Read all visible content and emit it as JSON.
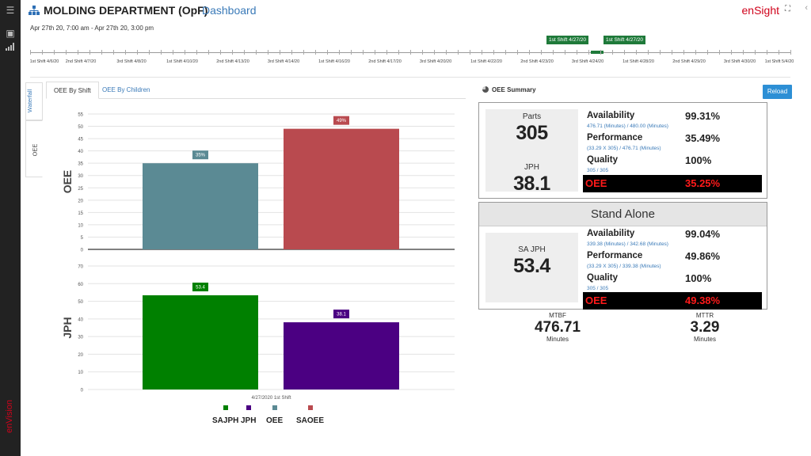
{
  "leftbar": {
    "brand": "enVision"
  },
  "header": {
    "title": "MOLDING DEPARTMENT (OpF)",
    "subtitle": "Dashboard",
    "app_name": "enSight",
    "accent": "#d0021b"
  },
  "date_range": "Apr 27th 20, 7:00 am - Apr 27th 20, 3:00 pm",
  "timeline": {
    "labels": [
      "1st Shift 4/6/20",
      "2nd Shift 4/7/20",
      "3rd Shift 4/8/20",
      "1st Shift 4/10/20",
      "2nd Shift 4/13/20",
      "3rd Shift 4/14/20",
      "1st Shift 4/16/20",
      "2nd Shift 4/17/20",
      "3rd Shift 4/20/20",
      "1st Shift 4/22/20",
      "2nd Shift 4/23/20",
      "3rd Shift 4/24/20",
      "1st Shift 4/28/20",
      "2nd Shift 4/29/20",
      "3rd Shift 4/30/20",
      "1st Shift 5/4/20"
    ],
    "flag_start": "1st Shift 4/27/20",
    "flag_end": "1st Shift 4/27/20",
    "selection_color": "#1f7a3a"
  },
  "vtabs": {
    "waterfall": "Waterfall",
    "oee": "OEE"
  },
  "tabs": {
    "by_shift": "OEE By Shift",
    "by_children": "OEE By Children"
  },
  "chart_data": [
    {
      "type": "bar",
      "ylabel": "OEE",
      "ylim": [
        0,
        55
      ],
      "yticks": [
        0,
        5,
        10,
        15,
        20,
        25,
        30,
        35,
        40,
        45,
        50,
        55
      ],
      "series": [
        {
          "name": "OEE",
          "values": [
            35
          ],
          "label": "35%",
          "color": "#5b8a94"
        },
        {
          "name": "SAOEE",
          "values": [
            49
          ],
          "label": "49%",
          "color": "#b94a4f"
        }
      ]
    },
    {
      "type": "bar",
      "ylabel": "JPH",
      "xlabel": "4/27/2020 1st Shift",
      "ylim": [
        0,
        70
      ],
      "yticks": [
        0,
        10,
        20,
        30,
        40,
        50,
        60,
        70
      ],
      "series": [
        {
          "name": "SAJPH",
          "values": [
            53.4
          ],
          "label": "53.4",
          "color": "#008000"
        },
        {
          "name": "JPH",
          "values": [
            38.1
          ],
          "label": "38.1",
          "color": "#4b0082"
        }
      ]
    }
  ],
  "legend": [
    {
      "name": "SAJPH",
      "color": "#008000"
    },
    {
      "name": "JPH",
      "color": "#4b0082"
    },
    {
      "name": "OEE",
      "color": "#5b8a94"
    },
    {
      "name": "SAOEE",
      "color": "#b94a4f"
    }
  ],
  "summary": {
    "title": "OEE Summary",
    "reload": "Reload",
    "main": {
      "parts_label": "Parts",
      "parts_value": "305",
      "jph_label": "JPH",
      "jph_value": "38.1",
      "availability_label": "Availability",
      "availability_value": "99.31%",
      "availability_sub": "476.71 (Minutes) / 480.00 (Minutes)",
      "performance_label": "Performance",
      "performance_value": "35.49%",
      "performance_sub": "(33.29 X 305) / 476.71 (Minutes)",
      "quality_label": "Quality",
      "quality_value": "100%",
      "quality_sub": "305 / 305",
      "oee_label": "OEE",
      "oee_value": "35.25%"
    },
    "standalone": {
      "title": "Stand Alone",
      "sajph_label": "SA JPH",
      "sajph_value": "53.4",
      "availability_label": "Availability",
      "availability_value": "99.04%",
      "availability_sub": "339.38 (Minutes) / 342.68 (Minutes)",
      "performance_label": "Performance",
      "performance_value": "49.86%",
      "performance_sub": "(33.29 X 305) / 339.38 (Minutes)",
      "quality_label": "Quality",
      "quality_value": "100%",
      "quality_sub": "305 / 305",
      "oee_label": "OEE",
      "oee_value": "49.38%"
    },
    "mtbf": {
      "label": "MTBF",
      "value": "476.71",
      "unit": "Minutes"
    },
    "mttr": {
      "label": "MTTR",
      "value": "3.29",
      "unit": "Minutes"
    }
  }
}
